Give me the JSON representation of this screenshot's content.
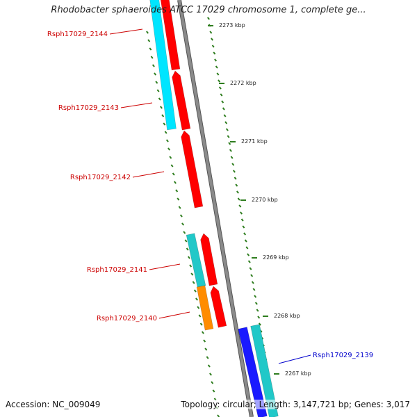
{
  "title": "Rhodobacter sphaeroides ATCC 17029 chromosome 1, complete ge...",
  "footer": {
    "accession": "Accession: NC_009049",
    "summary": "Topology: circular; Length: 3,147,721 bp; Genes: 3,017"
  },
  "colors": {
    "backbone": "#8a8a8a",
    "tick": "#2e7d1e",
    "label_red": "#cc0000",
    "label_blue": "#0000cc",
    "red_gene": "#ff0000",
    "cyan_gene": "#00e5ff",
    "teal_gene": "#21c8c8",
    "orange_gene": "#ff8c00",
    "blue_gene": "#1a1aff"
  },
  "ticks": [
    {
      "label": "2273 kbp"
    },
    {
      "label": "2272 kbp"
    },
    {
      "label": "2271 kbp"
    },
    {
      "label": "2270 kbp"
    },
    {
      "label": "2269 kbp"
    },
    {
      "label": "2268 kbp"
    },
    {
      "label": "2267 kbp"
    }
  ],
  "genes": [
    {
      "name": "Rsph17029_2144",
      "color_key": "label_red"
    },
    {
      "name": "Rsph17029_2143",
      "color_key": "label_red"
    },
    {
      "name": "Rsph17029_2142",
      "color_key": "label_red"
    },
    {
      "name": "Rsph17029_2141",
      "color_key": "label_red"
    },
    {
      "name": "Rsph17029_2140",
      "color_key": "label_red"
    },
    {
      "name": "Rsph17029_2139",
      "color_key": "label_blue"
    }
  ]
}
